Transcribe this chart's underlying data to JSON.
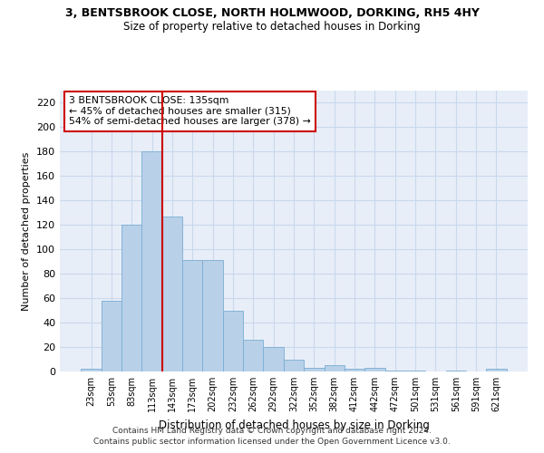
{
  "title1": "3, BENTSBROOK CLOSE, NORTH HOLMWOOD, DORKING, RH5 4HY",
  "title2": "Size of property relative to detached houses in Dorking",
  "xlabel": "Distribution of detached houses by size in Dorking",
  "ylabel": "Number of detached properties",
  "categories": [
    "23sqm",
    "53sqm",
    "83sqm",
    "113sqm",
    "143sqm",
    "173sqm",
    "202sqm",
    "232sqm",
    "262sqm",
    "292sqm",
    "322sqm",
    "352sqm",
    "382sqm",
    "412sqm",
    "442sqm",
    "472sqm",
    "501sqm",
    "531sqm",
    "561sqm",
    "591sqm",
    "621sqm"
  ],
  "values": [
    2,
    58,
    120,
    180,
    127,
    91,
    91,
    50,
    26,
    20,
    10,
    3,
    5,
    2,
    3,
    1,
    1,
    0,
    1,
    0,
    2
  ],
  "bar_color": "#b8d0e8",
  "bar_edge_color": "#7aadd4",
  "vline_x_index": 3,
  "vline_color": "#cc0000",
  "annotation_text": "3 BENTSBROOK CLOSE: 135sqm\n← 45% of detached houses are smaller (315)\n54% of semi-detached houses are larger (378) →",
  "annotation_box_color": "#ffffff",
  "annotation_box_edge": "#cc0000",
  "ylim": [
    0,
    230
  ],
  "yticks": [
    0,
    20,
    40,
    60,
    80,
    100,
    120,
    140,
    160,
    180,
    200,
    220
  ],
  "grid_color": "#c8d8ec",
  "footer1": "Contains HM Land Registry data © Crown copyright and database right 2024.",
  "footer2": "Contains public sector information licensed under the Open Government Licence v3.0.",
  "bg_color": "#e8eef8"
}
